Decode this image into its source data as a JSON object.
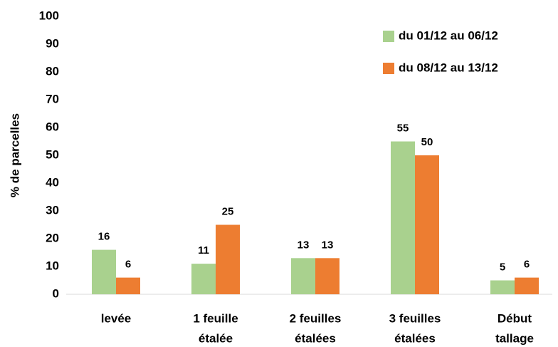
{
  "chart_data": {
    "type": "bar",
    "y_label": "% de parcelles",
    "categories": [
      [
        "levée"
      ],
      [
        "1 feuille",
        "étalée"
      ],
      [
        "2 feuilles",
        "étalées"
      ],
      [
        "3 feuilles",
        "étalées"
      ],
      [
        "Début",
        "tallage"
      ]
    ],
    "series": [
      {
        "name": "du 01/12 au 06/12",
        "color": "#a9d18e",
        "values": [
          16,
          11,
          13,
          55,
          5
        ]
      },
      {
        "name": "du 08/12 au 13/12",
        "color": "#ed7d31",
        "values": [
          6,
          25,
          13,
          50,
          6
        ]
      }
    ],
    "ylim": [
      0,
      100
    ],
    "yticks": [
      0,
      10,
      20,
      30,
      40,
      50,
      60,
      70,
      80,
      90,
      100
    ],
    "grid": false,
    "legend": "top-right"
  }
}
